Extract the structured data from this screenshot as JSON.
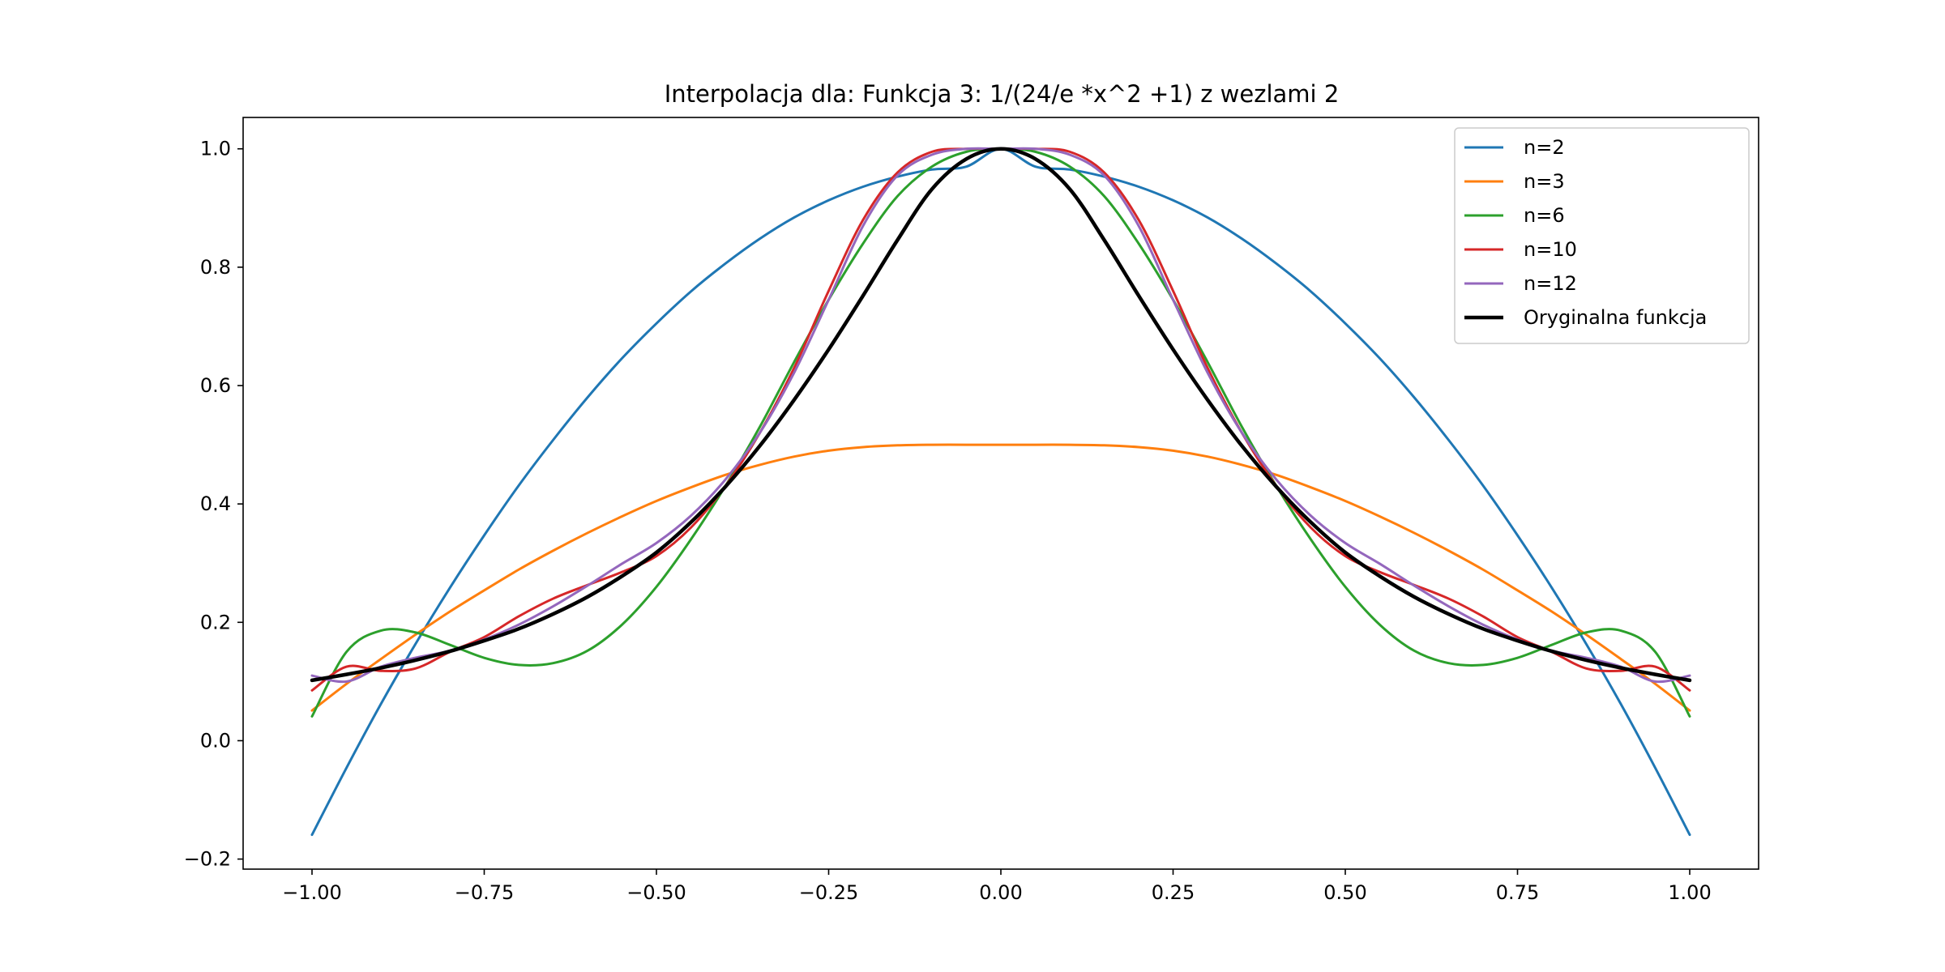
{
  "chart_data": {
    "type": "line",
    "title": "Interpolacja dla: Funkcja 3: 1/(24/e *x^2 +1) z wezlami 2",
    "xlabel": "",
    "ylabel": "",
    "xlim": [
      -1.1,
      1.1
    ],
    "ylim": [
      -0.217,
      1.053
    ],
    "x_ticks": [
      -1.0,
      -0.75,
      -0.5,
      -0.25,
      0.0,
      0.25,
      0.5,
      0.75,
      1.0
    ],
    "x_tick_labels": [
      "−1.00",
      "−0.75",
      "−0.50",
      "−0.25",
      "0.00",
      "0.25",
      "0.50",
      "0.75",
      "1.00"
    ],
    "y_ticks": [
      -0.2,
      0.0,
      0.2,
      0.4,
      0.6,
      0.8,
      1.0
    ],
    "y_tick_labels": [
      "−0.2",
      "0.0",
      "0.2",
      "0.4",
      "0.6",
      "0.8",
      "1.0"
    ],
    "grid": false,
    "legend_position": "top-right",
    "x": [
      -1.0,
      -0.95,
      -0.9,
      -0.85,
      -0.8,
      -0.75,
      -0.7,
      -0.65,
      -0.6,
      -0.55,
      -0.5,
      -0.45,
      -0.4,
      -0.35,
      -0.3,
      -0.25,
      -0.2,
      -0.15,
      -0.1,
      -0.05,
      0.0,
      0.05,
      0.1,
      0.15,
      0.2,
      0.25,
      0.3,
      0.35,
      0.4,
      0.45,
      0.5,
      0.55,
      0.6,
      0.65,
      0.7,
      0.75,
      0.8,
      0.85,
      0.9,
      0.95,
      1.0
    ],
    "series": [
      {
        "name": "n=2",
        "color": "#1f77b4",
        "width": 3,
        "values": [
          -0.159,
          -0.046,
          0.062,
          0.163,
          0.258,
          0.347,
          0.431,
          0.508,
          0.58,
          0.646,
          0.705,
          0.759,
          0.806,
          0.848,
          0.884,
          0.913,
          0.936,
          0.953,
          0.965,
          0.97,
          1.0,
          0.97,
          0.965,
          0.953,
          0.936,
          0.913,
          0.884,
          0.848,
          0.806,
          0.759,
          0.705,
          0.646,
          0.58,
          0.508,
          0.431,
          0.347,
          0.258,
          0.163,
          0.062,
          -0.046,
          -0.159
        ]
      },
      {
        "name": "n=3",
        "color": "#ff7f0e",
        "width": 3,
        "values": [
          0.051,
          0.096,
          0.138,
          0.179,
          0.218,
          0.254,
          0.289,
          0.321,
          0.351,
          0.379,
          0.405,
          0.428,
          0.449,
          0.466,
          0.48,
          0.49,
          0.496,
          0.499,
          0.5,
          0.5,
          0.5,
          0.5,
          0.5,
          0.499,
          0.496,
          0.49,
          0.48,
          0.466,
          0.449,
          0.428,
          0.405,
          0.379,
          0.351,
          0.321,
          0.289,
          0.254,
          0.218,
          0.179,
          0.138,
          0.096,
          0.051
        ]
      },
      {
        "name": "n=6",
        "color": "#2ca02c",
        "width": 3,
        "values": [
          0.041,
          0.15,
          0.186,
          0.183,
          0.162,
          0.14,
          0.128,
          0.131,
          0.152,
          0.196,
          0.26,
          0.34,
          0.43,
          0.53,
          0.64,
          0.745,
          0.84,
          0.92,
          0.97,
          0.995,
          1.0,
          0.995,
          0.97,
          0.92,
          0.84,
          0.745,
          0.64,
          0.53,
          0.43,
          0.34,
          0.26,
          0.196,
          0.152,
          0.131,
          0.128,
          0.14,
          0.162,
          0.183,
          0.186,
          0.15,
          0.041
        ]
      },
      {
        "name": "n=10",
        "color": "#d62728",
        "width": 3,
        "values": [
          0.085,
          0.125,
          0.118,
          0.122,
          0.15,
          0.175,
          0.21,
          0.24,
          0.263,
          0.285,
          0.312,
          0.36,
          0.43,
          0.52,
          0.63,
          0.76,
          0.88,
          0.96,
          0.995,
          1.0,
          1.0,
          1.0,
          0.995,
          0.96,
          0.88,
          0.76,
          0.63,
          0.52,
          0.43,
          0.36,
          0.312,
          0.285,
          0.263,
          0.24,
          0.21,
          0.175,
          0.15,
          0.122,
          0.118,
          0.125,
          0.085
        ]
      },
      {
        "name": "n=12",
        "color": "#9467bd",
        "width": 3,
        "values": [
          0.11,
          0.1,
          0.125,
          0.14,
          0.152,
          0.171,
          0.196,
          0.227,
          0.262,
          0.299,
          0.334,
          0.38,
          0.441,
          0.52,
          0.622,
          0.745,
          0.87,
          0.955,
          0.99,
          1.0,
          1.0,
          1.0,
          0.99,
          0.955,
          0.87,
          0.745,
          0.622,
          0.52,
          0.441,
          0.38,
          0.334,
          0.299,
          0.262,
          0.227,
          0.196,
          0.171,
          0.152,
          0.14,
          0.125,
          0.1,
          0.11
        ]
      },
      {
        "name": "Oryginalna funkcja",
        "color": "#000000",
        "width": 4.5,
        "values": [
          0.102,
          0.112,
          0.123,
          0.136,
          0.151,
          0.169,
          0.189,
          0.214,
          0.243,
          0.278,
          0.318,
          0.369,
          0.429,
          0.498,
          0.576,
          0.661,
          0.752,
          0.846,
          0.932,
          0.983,
          1.0,
          0.983,
          0.932,
          0.846,
          0.752,
          0.661,
          0.576,
          0.498,
          0.429,
          0.369,
          0.318,
          0.278,
          0.243,
          0.214,
          0.189,
          0.169,
          0.151,
          0.136,
          0.123,
          0.112,
          0.102
        ]
      }
    ]
  }
}
